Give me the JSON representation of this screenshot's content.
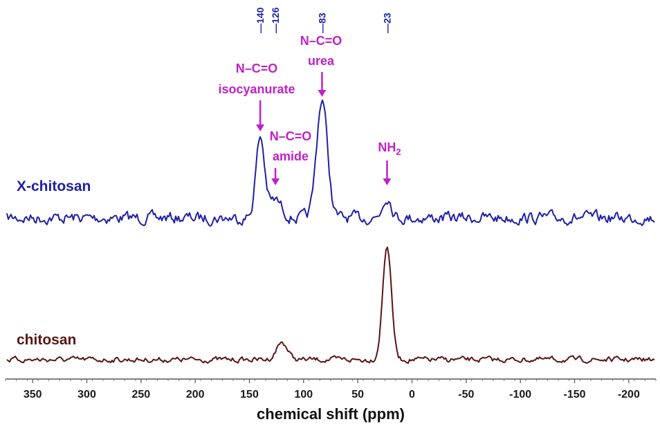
{
  "chart_data": {
    "type": "line",
    "xlabel": "chemical shift (ppm)",
    "xlim": [
      375,
      -225
    ],
    "x_reversed": true,
    "x_ticks": [
      350,
      300,
      250,
      200,
      150,
      100,
      50,
      0,
      -50,
      -100,
      -150,
      -200
    ],
    "peak_markers": [
      "140",
      "126",
      "83",
      "23"
    ],
    "peak_marker_values": [
      140,
      126,
      83,
      23
    ],
    "series": [
      {
        "name": "X-chitosan",
        "color": "#1f1fa8",
        "peaks": [
          {
            "x": 140,
            "height": 0.55,
            "width": 4
          },
          {
            "x": 126,
            "height": 0.12,
            "width": 6
          },
          {
            "x": 83,
            "height": 0.82,
            "width": 5
          },
          {
            "x": 23,
            "height": 0.15,
            "width": 4
          }
        ]
      },
      {
        "name": "chitosan",
        "color": "#5a1414",
        "peaks": [
          {
            "x": 120,
            "height": 0.14,
            "width": 5
          },
          {
            "x": 23,
            "height": 0.92,
            "width": 4
          }
        ]
      }
    ],
    "annotations": [
      {
        "lines": [
          "N–C=O",
          "isocyanurate"
        ],
        "x": 140,
        "color": "#c020c8"
      },
      {
        "lines": [
          "N–C=O",
          "amide"
        ],
        "x": 126,
        "color": "#c020c8"
      },
      {
        "lines": [
          "N–C=O",
          "urea"
        ],
        "x": 83,
        "color": "#c020c8"
      },
      {
        "lines": [
          "NH",
          "2"
        ],
        "x": 23,
        "color": "#c020c8",
        "subscript": true
      }
    ]
  }
}
